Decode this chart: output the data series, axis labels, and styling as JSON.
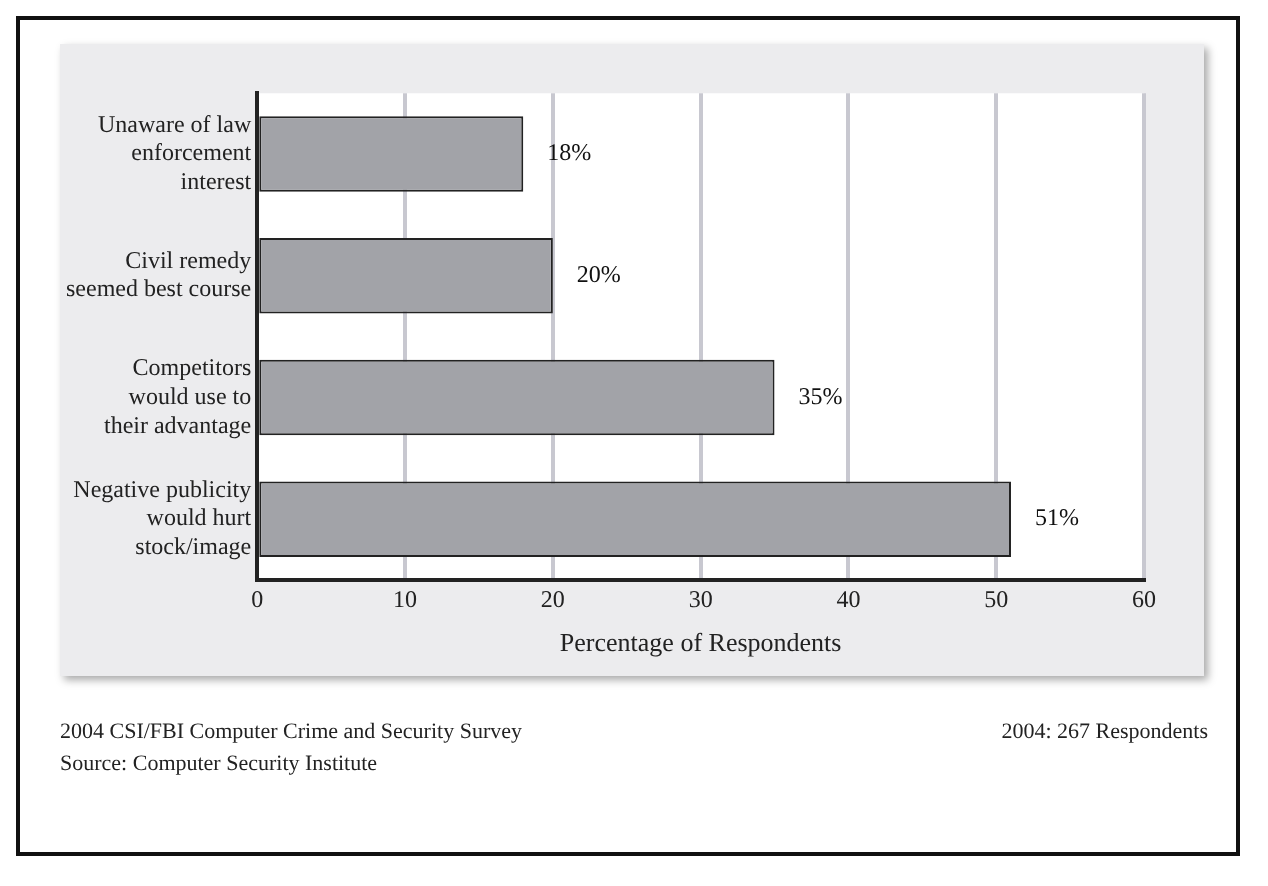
{
  "chart_data": {
    "type": "bar",
    "orientation": "horizontal",
    "categories": [
      "Unaware of law\nenforcement\ninterest",
      "Civil remedy\nseemed best course",
      "Competitors\nwould use to\ntheir advantage",
      "Negative publicity\nwould hurt\nstock/image"
    ],
    "values": [
      18,
      20,
      35,
      51
    ],
    "color": "#a2a3a8",
    "value_labels": [
      "18%",
      "20%",
      "35%",
      "51%"
    ],
    "xlim": [
      0,
      60
    ],
    "xticks": [
      0,
      10,
      20,
      30,
      40,
      50,
      60
    ],
    "xlabel": "Percentage of Respondents",
    "grid": "x",
    "legend": false,
    "annotations": [
      "2004 CSI/FBI Computer Crime and Security Survey",
      "Source: Computer Security Institute",
      "2004: 267 Respondents"
    ]
  }
}
